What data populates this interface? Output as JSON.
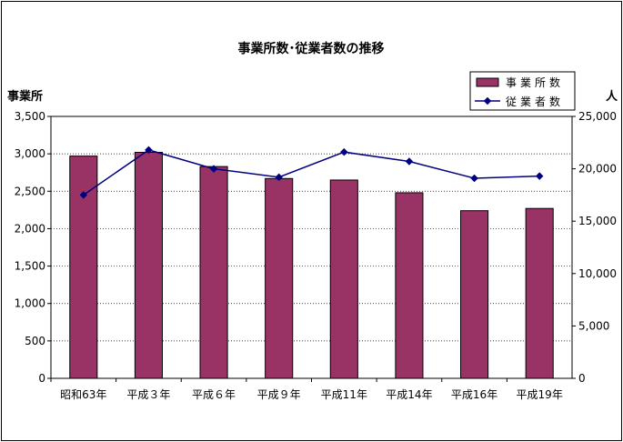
{
  "chart_data": {
    "type": "bar",
    "title": "事業所数･従業者数の推移",
    "categories": [
      "昭和63年",
      "平成３年",
      "平成６年",
      "平成９年",
      "平成11年",
      "平成14年",
      "平成16年",
      "平成19年"
    ],
    "series": [
      {
        "name": "事業所数",
        "type": "bar",
        "axis": "left",
        "color": "#993366",
        "values": [
          2970,
          3020,
          2830,
          2670,
          2650,
          2480,
          2240,
          2270
        ]
      },
      {
        "name": "従業者数",
        "type": "line",
        "axis": "right",
        "color": "#000080",
        "values": [
          17500,
          21800,
          20000,
          19200,
          21600,
          20700,
          19100,
          19300
        ]
      }
    ],
    "ylabel_left": "事業所",
    "ylabel_right": "人",
    "ylim_left": [
      0,
      3500
    ],
    "ylim_right": [
      0,
      25000
    ],
    "yticks_left": [
      "0",
      "500",
      "1,000",
      "1,500",
      "2,000",
      "2,500",
      "3,000",
      "3,500"
    ],
    "yticks_right": [
      "0",
      "5,000",
      "10,000",
      "15,000",
      "20,000",
      "25,000"
    ],
    "grid": "horizontal-dotted",
    "legend_position": "top-right"
  }
}
